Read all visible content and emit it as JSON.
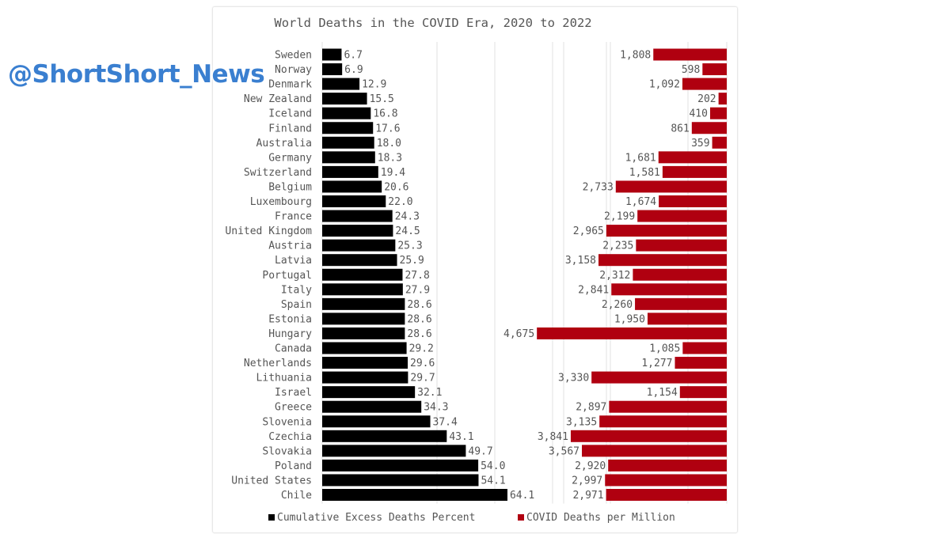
{
  "watermark": "@ShortShort_News",
  "chart_data": {
    "type": "bar",
    "title": "World Deaths in the COVID Era, 2020 to 2022",
    "categories": [
      "Sweden",
      "Norway",
      "Denmark",
      "New Zealand",
      "Iceland",
      "Finland",
      "Australia",
      "Germany",
      "Switzerland",
      "Belgium",
      "Luxembourg",
      "France",
      "United Kingdom",
      "Austria",
      "Latvia",
      "Portugal",
      "Italy",
      "Spain",
      "Estonia",
      "Hungary",
      "Canada",
      "Netherlands",
      "Lithuania",
      "Israel",
      "Greece",
      "Slovenia",
      "Czechia",
      "Slovakia",
      "Poland",
      "United States",
      "Chile"
    ],
    "series": [
      {
        "name": "Cumulative Excess Deaths Percent",
        "color": "#000000",
        "values": [
          6.7,
          6.9,
          12.9,
          15.5,
          16.8,
          17.6,
          18.0,
          18.3,
          19.4,
          20.6,
          22.0,
          24.3,
          24.5,
          25.3,
          25.9,
          27.8,
          27.9,
          28.6,
          28.6,
          28.6,
          29.2,
          29.6,
          29.7,
          32.1,
          34.3,
          37.4,
          43.1,
          49.7,
          54.0,
          54.1,
          64.1
        ],
        "labels": [
          "6.7",
          "6.9",
          "12.9",
          "15.5",
          "16.8",
          "17.6",
          "18.0",
          "18.3",
          "19.4",
          "20.6",
          "22.0",
          "24.3",
          "24.5",
          "25.3",
          "25.9",
          "27.8",
          "27.9",
          "28.6",
          "28.6",
          "28.6",
          "29.2",
          "29.6",
          "29.7",
          "32.1",
          "34.3",
          "37.4",
          "43.1",
          "49.7",
          "54.0",
          "54.1",
          "64.1"
        ]
      },
      {
        "name": "COVID Deaths per Million",
        "color": "#b00010",
        "values": [
          1808,
          598,
          1092,
          202,
          410,
          861,
          359,
          1681,
          1581,
          2733,
          1674,
          2199,
          2965,
          2235,
          3158,
          2312,
          2841,
          2260,
          1950,
          4675,
          1085,
          1277,
          3330,
          1154,
          2897,
          3135,
          3841,
          3567,
          2920,
          2997,
          2971
        ],
        "labels": [
          "1,808",
          "598",
          "1,092",
          "202",
          "410",
          "861",
          "359",
          "1,681",
          "1,581",
          "2,733",
          "1,674",
          "2,199",
          "2,965",
          "2,235",
          "3,158",
          "2,312",
          "2,841",
          "2,260",
          "1,950",
          "4,675",
          "1,085",
          "1,277",
          "3,330",
          "1,154",
          "2,897",
          "3,135",
          "3,841",
          "3,567",
          "2,920",
          "2,997",
          "2,971"
        ]
      }
    ],
    "legend_position": "bottom",
    "grid": true
  }
}
